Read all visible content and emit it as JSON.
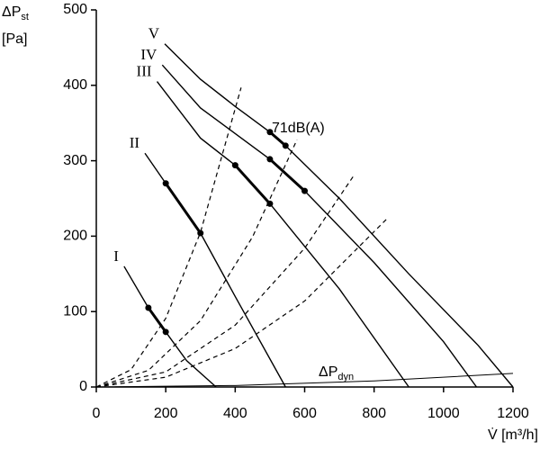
{
  "chart_data": {
    "type": "line",
    "y_label": {
      "main": "ΔP",
      "sub": "st",
      "unit": "[Pa]"
    },
    "x_label": "V̇ [m³/h]",
    "annotation": "71dB(A)",
    "dyn_label": {
      "main": "ΔP",
      "sub": "dyn"
    },
    "xlim": [
      0,
      1200
    ],
    "xticks": [
      0,
      200,
      400,
      600,
      800,
      1000,
      1200
    ],
    "ylim": [
      0,
      500
    ],
    "yticks": [
      0,
      100,
      200,
      300,
      400,
      500
    ],
    "color": "#000000",
    "series": [
      {
        "name": "I",
        "style": "solid",
        "x": [
          80,
          150,
          200,
          260,
          345
        ],
        "values": [
          160,
          105,
          73,
          35,
          0
        ]
      },
      {
        "name": "II",
        "style": "solid",
        "x": [
          140,
          200,
          300,
          400,
          545
        ],
        "values": [
          310,
          270,
          204,
          120,
          0
        ]
      },
      {
        "name": "III",
        "style": "solid",
        "x": [
          175,
          300,
          400,
          500,
          700,
          900
        ],
        "values": [
          405,
          330,
          294,
          243,
          130,
          0
        ]
      },
      {
        "name": "IV",
        "style": "solid",
        "x": [
          190,
          300,
          400,
          500,
          600,
          800,
          1000,
          1095
        ],
        "values": [
          427,
          370,
          336,
          302,
          260,
          165,
          60,
          0
        ]
      },
      {
        "name": "V",
        "style": "solid",
        "x": [
          197,
          300,
          400,
          500,
          545,
          700,
          900,
          1100,
          1200
        ],
        "values": [
          455,
          408,
          372,
          338,
          320,
          250,
          150,
          55,
          0
        ]
      },
      {
        "style": "dashed",
        "x": [
          0,
          100,
          200,
          300,
          417
        ],
        "values": [
          0,
          23,
          91,
          205,
          397
        ]
      },
      {
        "style": "dashed",
        "x": [
          0,
          150,
          300,
          450,
          578
        ],
        "values": [
          0,
          22,
          88,
          199,
          328
        ]
      },
      {
        "style": "dashed",
        "x": [
          0,
          200,
          400,
          600,
          741
        ],
        "values": [
          0,
          20,
          82,
          184,
          280
        ]
      },
      {
        "style": "dashed",
        "x": [
          0,
          200,
          400,
          600,
          839
        ],
        "values": [
          0,
          13,
          51,
          114,
          224
        ]
      },
      {
        "style": "thin",
        "x": [
          0,
          400,
          800,
          1200
        ],
        "values": [
          0,
          2,
          8,
          18
        ]
      },
      {
        "style": "bold",
        "x": [
          150,
          200
        ],
        "values": [
          105,
          73
        ]
      },
      {
        "style": "bold",
        "x": [
          200,
          300
        ],
        "values": [
          270,
          204
        ]
      },
      {
        "style": "bold",
        "x": [
          400,
          500
        ],
        "values": [
          294,
          243
        ]
      },
      {
        "style": "bold",
        "x": [
          500,
          600
        ],
        "values": [
          302,
          260
        ]
      },
      {
        "style": "bold",
        "x": [
          500,
          545
        ],
        "values": [
          338,
          320
        ]
      }
    ]
  }
}
